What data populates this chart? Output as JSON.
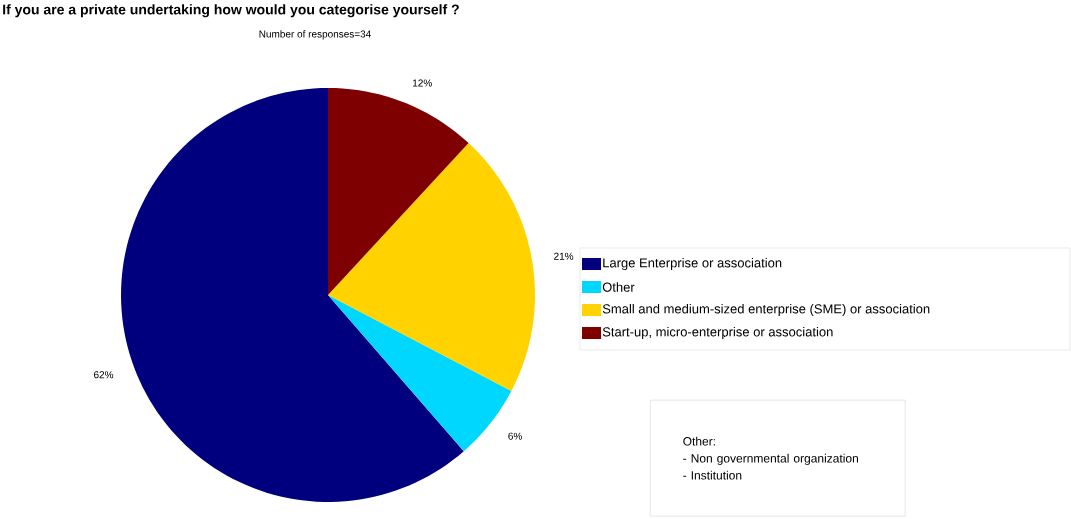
{
  "chart_data": {
    "type": "pie",
    "title": "If you are a private undertaking how would you categorise yourself ?",
    "subtitle": "Number of responses=34",
    "categories": [
      "Large Enterprise or association",
      "Other",
      "Small and medium-sized enterprise (SME) or association",
      "Start-up, micro-enterprise or association"
    ],
    "values": [
      62,
      6,
      21,
      12
    ],
    "colors": [
      "#00007f",
      "#00d7ff",
      "#ffd200",
      "#7f0000"
    ],
    "value_labels": [
      "62%",
      "6%",
      "21%",
      "12%"
    ],
    "legend": "right",
    "annotations": [
      "Other:",
      "- Non governmental organization",
      "- Institution"
    ]
  }
}
